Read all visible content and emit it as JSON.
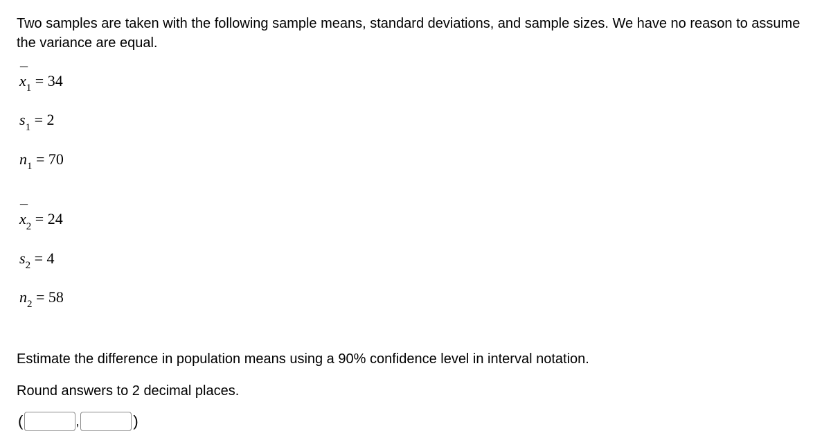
{
  "intro": "Two samples are taken with the following sample means, standard deviations, and sample sizes. We have no reason to assume the variance are equal.",
  "sample1": {
    "xbar_value": "34",
    "s_value": "2",
    "n_value": "70"
  },
  "sample2": {
    "xbar_value": "24",
    "s_value": "4",
    "n_value": "58"
  },
  "question_line1": "Estimate the difference in population means using a 90% confidence level in interval notation.",
  "question_line2": "Round answers to 2 decimal places.",
  "answer": {
    "lower": "",
    "upper": ""
  }
}
